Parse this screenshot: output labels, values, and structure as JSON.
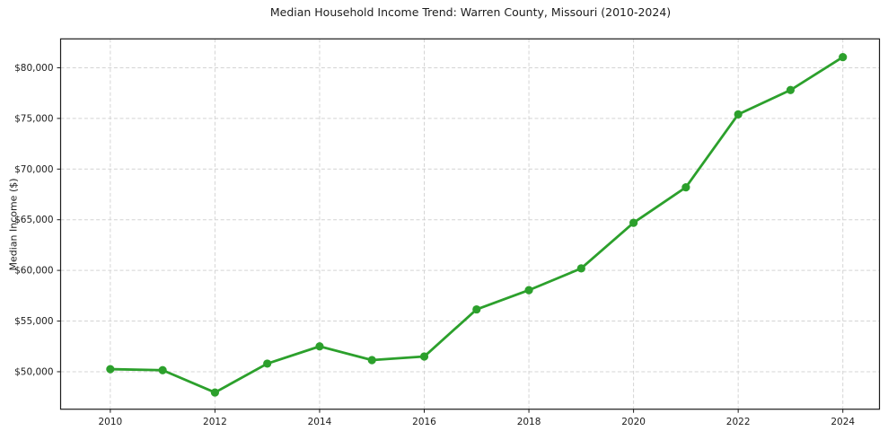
{
  "figure": {
    "background": "#ffffff"
  },
  "chart_data": {
    "type": "line",
    "title": "Median Household Income Trend: Warren County, Missouri (2010-2024)",
    "xlabel": "",
    "ylabel": "Median Income ($)",
    "x": [
      2010,
      2011,
      2012,
      2013,
      2014,
      2015,
      2016,
      2017,
      2018,
      2019,
      2020,
      2021,
      2022,
      2023,
      2024
    ],
    "series": [
      {
        "name": "Median Household Income",
        "color": "#2ca02c",
        "marker": "circle",
        "values": [
          50250,
          50150,
          47950,
          50800,
          52500,
          51150,
          51500,
          56150,
          58050,
          60200,
          64700,
          68200,
          75400,
          77800,
          81050
        ]
      }
    ],
    "xticks": [
      2010,
      2012,
      2014,
      2016,
      2018,
      2020,
      2022,
      2024
    ],
    "yticks": [
      50000,
      55000,
      60000,
      65000,
      70000,
      75000,
      80000
    ],
    "ytick_labels": [
      "$50,000",
      "$55,000",
      "$60,000",
      "$65,000",
      "$70,000",
      "$75,000",
      "$80,000"
    ],
    "xlim": [
      2009.05,
      2024.7
    ],
    "ylim": [
      46300,
      82850
    ],
    "grid": true,
    "grid_style": "dashed",
    "legend": "none",
    "colors": {
      "line": "#2ca02c",
      "grid": "#d4d4d4",
      "axis": "#1c1c1c",
      "text": "#1c1c1c",
      "background": "#ffffff"
    }
  }
}
